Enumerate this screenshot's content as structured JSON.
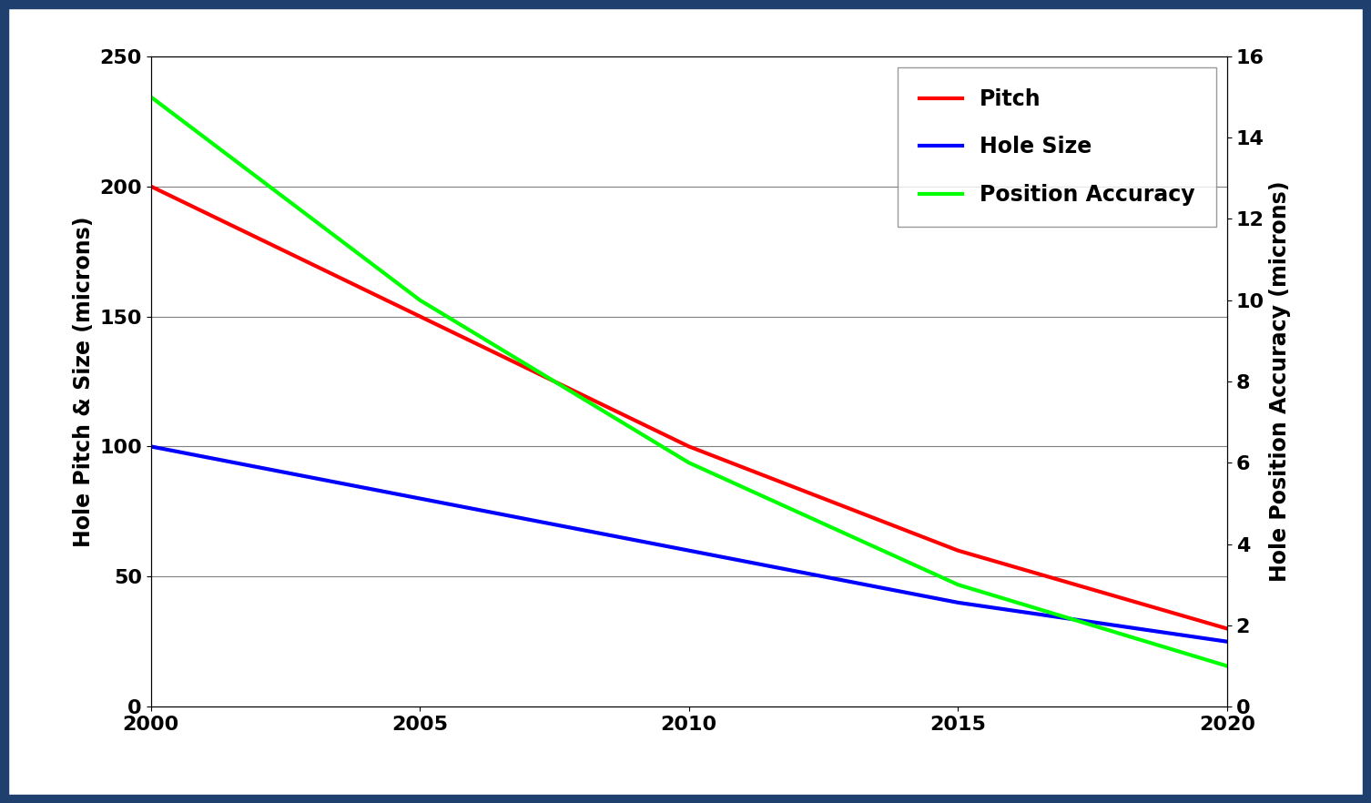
{
  "chart_data": {
    "type": "line",
    "x": [
      2000,
      2005,
      2010,
      2015,
      2020
    ],
    "xlim": [
      2000,
      2020
    ],
    "xticks": [
      2000,
      2005,
      2010,
      2015,
      2020
    ],
    "y_label": "Hole Pitch & Size (microns)",
    "y2_label": "Hole Position Accuracy (microns)",
    "ylim": [
      0,
      250
    ],
    "yticks": [
      0,
      50,
      100,
      150,
      200,
      250
    ],
    "y2lim": [
      0,
      16
    ],
    "y2ticks": [
      0,
      2,
      4,
      6,
      8,
      10,
      12,
      14,
      16
    ],
    "grid": true,
    "legend": "upper right",
    "series": [
      {
        "name": "Pitch",
        "color": "#ff0000",
        "values": [
          200,
          150,
          100,
          60,
          30
        ]
      },
      {
        "name": "Hole Size",
        "color": "#0000ff",
        "values": [
          100,
          80,
          60,
          40,
          25
        ]
      },
      {
        "name": "Position Accuracy",
        "color": "#00ff00",
        "values": [
          15,
          10,
          6,
          3,
          1
        ],
        "axis": "y2"
      }
    ]
  }
}
